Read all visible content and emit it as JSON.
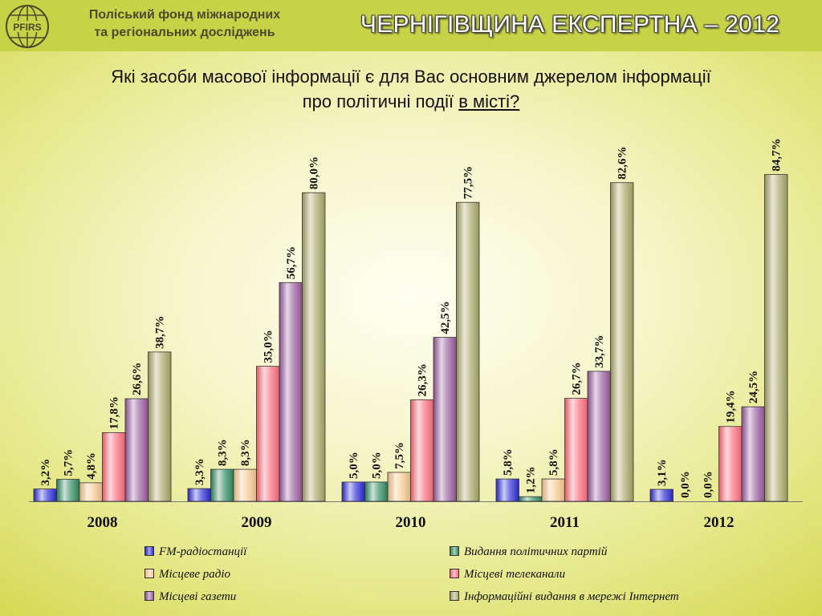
{
  "header": {
    "org_line1": "Поліський фонд міжнародних",
    "org_line2": "та регіональних досліджень",
    "logo_text": "PFIRS",
    "slide_title": "ЧЕРНІГІВЩИНА ЕКСПЕРТНА – 2012",
    "question_line1": "Які засоби масової інформації є для Вас основним джерелом інформації",
    "question_line2_start": "про політичні події ",
    "question_line2_underlined": "в місті?"
  },
  "colors": {
    "header_band": "#c8d246",
    "fm_radio": "#2a2ad6",
    "party_publications": "#2e8a5e",
    "local_radio": "#f8c88c",
    "local_tv": "#ff6b7a",
    "local_newspapers": "#9a5a9e",
    "internet": "#a8a868"
  },
  "chart_data": {
    "type": "bar",
    "categories": [
      "2008",
      "2009",
      "2010",
      "2011",
      "2012"
    ],
    "ylim": [
      0,
      100
    ],
    "grid": false,
    "legend_position": "bottom",
    "series": [
      {
        "name": "FM-радіостанції",
        "color": "#2a2ad6",
        "values": [
          3.2,
          3.3,
          5.0,
          5.8,
          3.1
        ],
        "labels": [
          "3,2%",
          "3,3%",
          "5,0%",
          "5,8%",
          "3,1%"
        ]
      },
      {
        "name": "Видання політичних партій",
        "color": "#2e8a5e",
        "values": [
          5.7,
          8.3,
          5.0,
          1.2,
          0.0
        ],
        "labels": [
          "5,7%",
          "8,3%",
          "5,0%",
          "1,2%",
          "0,0%"
        ]
      },
      {
        "name": "Місцеве радіо",
        "color": "#f8c88c",
        "values": [
          4.8,
          8.3,
          7.5,
          5.8,
          0.0
        ],
        "labels": [
          "4,8%",
          "8,3%",
          "7,5%",
          "5,8%",
          "0,0%"
        ]
      },
      {
        "name": "Місцеві телеканали",
        "color": "#ff6b7a",
        "values": [
          17.8,
          35.0,
          26.3,
          26.7,
          19.4
        ],
        "labels": [
          "17,8%",
          "35,0%",
          "26,3%",
          "26,7%",
          "19,4%"
        ]
      },
      {
        "name": "Місцеві газети",
        "color": "#9a5a9e",
        "values": [
          26.6,
          56.7,
          42.5,
          33.7,
          24.5
        ],
        "labels": [
          "26,6%",
          "56,7%",
          "42,5%",
          "33,7%",
          "24,5%"
        ]
      },
      {
        "name": "Інформаційні видання в мережі Інтернет",
        "color": "#a8a868",
        "values": [
          38.7,
          80.0,
          77.5,
          82.6,
          84.7
        ],
        "labels": [
          "38,7%",
          "80,0%",
          "77,5%",
          "82,6%",
          "84,7%"
        ]
      }
    ]
  }
}
